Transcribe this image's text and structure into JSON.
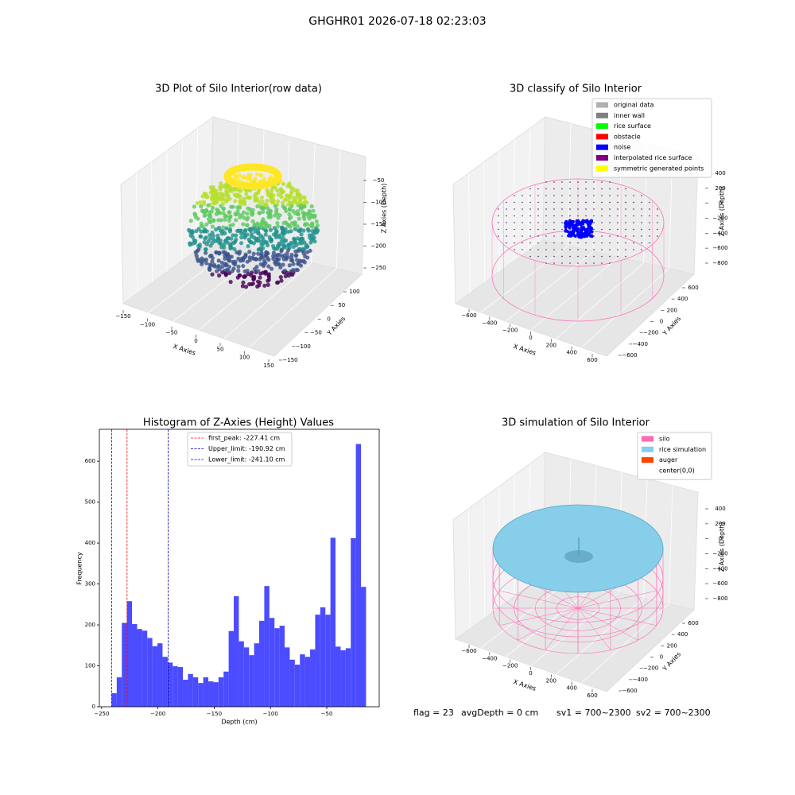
{
  "title": "GHGHR01 2026-07-18 02:23:03",
  "chart_data": [
    {
      "type": "scatter3d",
      "title": "3D Plot of Silo Interior(row data)",
      "xlabel": "X Axies",
      "ylabel": "Y Axies",
      "zlabel": "Z Axies (Depth)",
      "xlim": [
        -160,
        160
      ],
      "xticks": [
        {
          "value": -150,
          "label": "−150"
        },
        {
          "value": -100,
          "label": "−100"
        },
        {
          "value": -50,
          "label": "−50"
        },
        0,
        50,
        100,
        150
      ],
      "ylim": [
        -160,
        110
      ],
      "yticks": [
        {
          "value": -150,
          "label": "−150"
        },
        {
          "value": -100,
          "label": "−100"
        },
        {
          "value": -50,
          "label": "−50"
        },
        0,
        50,
        100
      ],
      "zlim": [
        -260,
        -40
      ],
      "zticks": [
        {
          "value": -50,
          "label": "−50"
        },
        {
          "value": -100,
          "label": "−100"
        },
        {
          "value": -150,
          "label": "−150"
        },
        {
          "value": -200,
          "label": "−200"
        },
        {
          "value": -250,
          "label": "−250"
        }
      ]
    },
    {
      "type": "scatter3d",
      "title": "3D classify of Silo Interior",
      "xlabel": "X Axies",
      "ylabel": "Y Axies",
      "zlabel": "Z Axies (Depth)",
      "xlim": [
        -700,
        700
      ],
      "xticks": [
        {
          "value": -600,
          "label": "−600"
        },
        {
          "value": -400,
          "label": "−400"
        },
        {
          "value": -200,
          "label": "−200"
        },
        0,
        200,
        400,
        600
      ],
      "ylim": [
        -700,
        700
      ],
      "yticks": [
        {
          "value": -600,
          "label": "−600"
        },
        {
          "value": -400,
          "label": "−400"
        },
        {
          "value": -200,
          "label": "−200"
        },
        0,
        200,
        400,
        600
      ],
      "zlim": [
        -900,
        500
      ],
      "zticks": [
        400,
        200,
        0,
        {
          "value": -200,
          "label": "−200"
        },
        {
          "value": -400,
          "label": "−400"
        },
        {
          "value": -600,
          "label": "−600"
        },
        {
          "value": -800,
          "label": "−800"
        }
      ],
      "legend": [
        {
          "label": "original data",
          "color": "#b0b0b0"
        },
        {
          "label": "inner wall",
          "color": "#808080"
        },
        {
          "label": "rice surface",
          "color": "#00ff00"
        },
        {
          "label": "obstacle",
          "color": "#ff0000"
        },
        {
          "label": "noise",
          "color": "#0000ff"
        },
        {
          "label": "interpolated rice surface",
          "color": "#800080"
        },
        {
          "label": "symmetric generated points",
          "color": "#ffff00"
        }
      ]
    },
    {
      "type": "histogram",
      "title": "Histogram of Z-Axies (Height) Values",
      "xlabel": "Depth (cm)",
      "ylabel": "Frequency",
      "color": "#4b4bff",
      "bins": [
        -241.1,
        -236.58,
        -232.06,
        -227.54,
        -223.02,
        -218.5,
        -213.98,
        -209.46,
        -204.94,
        -200.42,
        -195.9,
        -191.38,
        -186.86,
        -182.34,
        -177.82,
        -173.3,
        -168.78,
        -164.26,
        -159.74,
        -155.22,
        -150.7,
        -146.18,
        -141.66,
        -137.14,
        -132.62,
        -128.1,
        -123.58,
        -119.06,
        -114.54,
        -110.02,
        -105.5,
        -100.98,
        -96.46,
        -91.94,
        -87.42,
        -82.9,
        -78.38,
        -73.86,
        -69.34,
        -64.82,
        -60.3,
        -55.78,
        -51.26,
        -46.74,
        -42.22,
        -37.7,
        -33.18,
        -28.66,
        -24.14,
        -19.62,
        -15.1
      ],
      "values": [
        33,
        72,
        205,
        258,
        202,
        190,
        186,
        168,
        148,
        155,
        122,
        108,
        99,
        97,
        66,
        80,
        72,
        58,
        72,
        62,
        60,
        72,
        86,
        185,
        270,
        160,
        145,
        126,
        155,
        210,
        295,
        217,
        192,
        198,
        145,
        115,
        103,
        128,
        122,
        140,
        225,
        243,
        225,
        413,
        147,
        138,
        143,
        412,
        642,
        293
      ],
      "xlim": [
        -252,
        -3.4
      ],
      "xticks": [
        {
          "value": -250,
          "label": "−250"
        },
        {
          "value": -200,
          "label": "−200"
        },
        {
          "value": -150,
          "label": "−150"
        },
        {
          "value": -100,
          "label": "−100"
        },
        {
          "value": -50,
          "label": "−50"
        }
      ],
      "ylim": [
        0,
        678
      ],
      "yticks": [
        0,
        100,
        200,
        300,
        400,
        500,
        600
      ],
      "vlines": [
        {
          "label": "first_peak: -227.41 cm",
          "value": -227.41,
          "color": "#ff0000"
        },
        {
          "label": "Upper_limit: -190.92 cm",
          "value": -190.92,
          "color": "#0000aa"
        },
        {
          "label": "Lower_limit: -241.10 cm",
          "value": -241.1,
          "color": "#0000ff"
        }
      ]
    },
    {
      "type": "surface3d",
      "title": "3D simulation of Silo Interior",
      "xlabel": "X Axies",
      "ylabel": "Y Axies",
      "zlabel": "Z Axies (Depth)",
      "xlim": [
        -700,
        700
      ],
      "xticks": [
        {
          "value": -600,
          "label": "−600"
        },
        {
          "value": -400,
          "label": "−400"
        },
        {
          "value": -200,
          "label": "−200"
        },
        0,
        200,
        400,
        600
      ],
      "ylim": [
        -700,
        700
      ],
      "yticks": [
        {
          "value": -600,
          "label": "−600"
        },
        {
          "value": -400,
          "label": "−400"
        },
        {
          "value": -200,
          "label": "−200"
        },
        0,
        200,
        400,
        600
      ],
      "zlim": [
        -900,
        500
      ],
      "zticks": [
        400,
        200,
        0,
        {
          "value": -200,
          "label": "−200"
        },
        {
          "value": -400,
          "label": "−400"
        },
        {
          "value": -600,
          "label": "−600"
        },
        {
          "value": -800,
          "label": "−800"
        }
      ],
      "legend": [
        {
          "label": "silo",
          "color": "#ff69b4"
        },
        {
          "label": "rice simulation",
          "color": "#87ceeb"
        },
        {
          "label": "auger",
          "color": "#ff4500"
        },
        {
          "label": "center(0,0)",
          "color": "#ffffff"
        }
      ]
    }
  ],
  "footer": [
    "flag = 23",
    "avgDepth = 0 cm",
    "sv1 = 700~2300",
    "sv2 = 700~2300"
  ]
}
